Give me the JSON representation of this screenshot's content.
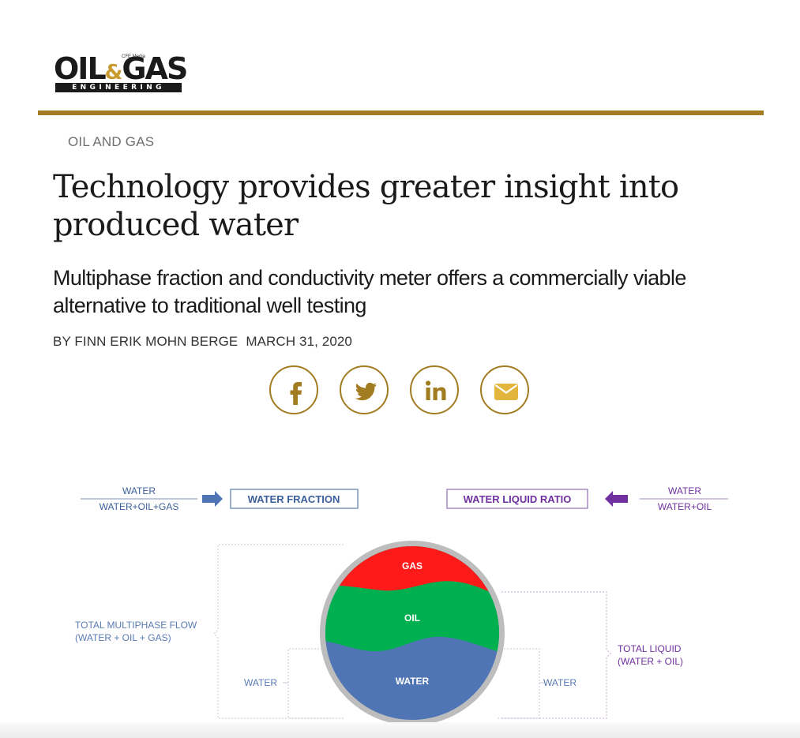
{
  "site": {
    "logo_main": "OIL",
    "logo_amp": "&",
    "logo_main2": "GAS",
    "logo_sub": "ENGINEERING",
    "logo_sup": "CFE Media",
    "logo_reg": "®",
    "accent_color": "#a27c21"
  },
  "article": {
    "category": "OIL AND GAS",
    "headline": "Technology provides greater insight into produced water",
    "subhead": "Multiphase fraction and conductivity meter offers a commercially viable alternative to traditional well testing",
    "author": "BY FINN ERIK MOHN BERGE",
    "date": "MARCH 31, 2020"
  },
  "share": {
    "buttons": [
      {
        "name": "facebook",
        "icon": "facebook-icon"
      },
      {
        "name": "twitter",
        "icon": "twitter-icon"
      },
      {
        "name": "linkedin",
        "icon": "linkedin-icon"
      },
      {
        "name": "email",
        "icon": "email-icon"
      }
    ]
  },
  "figure": {
    "left_numerator": "WATER",
    "left_denominator": "WATER+OIL+GAS",
    "left_box": "WATER FRACTION",
    "right_box": "WATER LIQUID RATIO",
    "right_numerator": "WATER",
    "right_denominator": "WATER+OIL",
    "phase_gas": "GAS",
    "phase_oil": "OIL",
    "phase_water": "WATER",
    "total_multiphase_line1": "TOTAL MULTIPHASE FLOW",
    "total_multiphase_line2": "(WATER + OIL + GAS)",
    "total_liquid_line1": "TOTAL LIQUID",
    "total_liquid_line2": "(WATER + OIL)",
    "water_left": "WATER",
    "water_right": "WATER",
    "colors": {
      "gas": "#ff1a1a",
      "oil": "#00b050",
      "water": "#4f75b5",
      "blue_label": "#3b5f9a",
      "purple_label": "#7030a0"
    }
  }
}
